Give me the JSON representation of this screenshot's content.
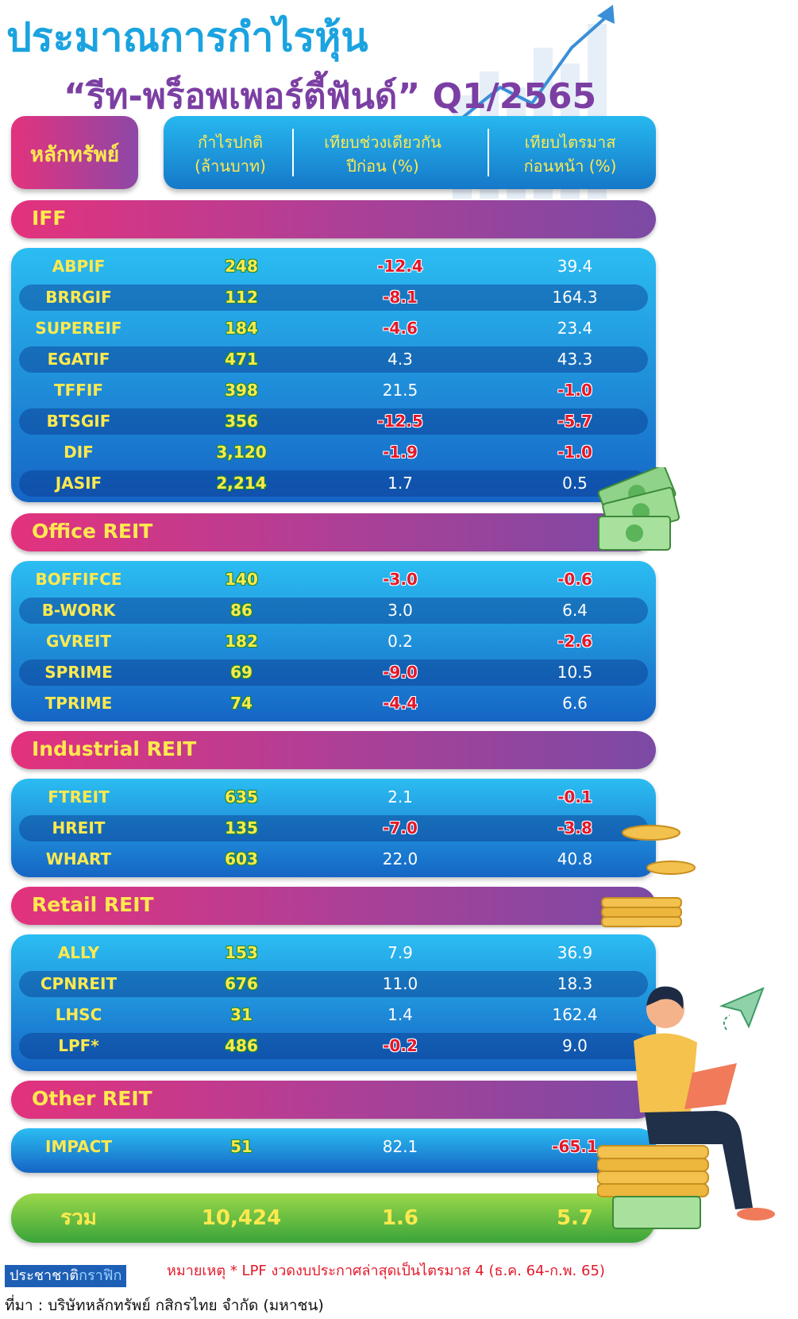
{
  "title": {
    "line1": "ประมาณการกำไรหุ้น",
    "line2": "“รีท-พร็อพเพอร์ตี้ฟันด์” Q1/2565"
  },
  "header": {
    "security": "หลักทรัพย์",
    "profit_l1": "กำไรปกติ",
    "profit_l2": "(ล้านบาท)",
    "yoy_l1": "เทียบช่วงเดียวกัน",
    "yoy_l2": "ปีก่อน (%)",
    "qoq_l1": "เทียบไตรมาส",
    "qoq_l2": "ก่อนหน้า (%)"
  },
  "sections": [
    {
      "label": "IFF",
      "rows": [
        {
          "name": "ABPIF",
          "profit": "248",
          "yoy": "-12.4",
          "qoq": "39.4"
        },
        {
          "name": "BRRGIF",
          "profit": "112",
          "yoy": "-8.1",
          "qoq": "164.3"
        },
        {
          "name": "SUPEREIF",
          "profit": "184",
          "yoy": "-4.6",
          "qoq": "23.4"
        },
        {
          "name": "EGATIF",
          "profit": "471",
          "yoy": "4.3",
          "qoq": "43.3"
        },
        {
          "name": "TFFIF",
          "profit": "398",
          "yoy": "21.5",
          "qoq": "-1.0"
        },
        {
          "name": "BTSGIF",
          "profit": "356",
          "yoy": "-12.5",
          "qoq": "-5.7"
        },
        {
          "name": "DIF",
          "profit": "3,120",
          "yoy": "-1.9",
          "qoq": "-1.0"
        },
        {
          "name": "JASIF",
          "profit": "2,214",
          "yoy": "1.7",
          "qoq": "0.5"
        }
      ]
    },
    {
      "label": "Office REIT",
      "rows": [
        {
          "name": "BOFFIFCE",
          "profit": "140",
          "yoy": "-3.0",
          "qoq": "-0.6"
        },
        {
          "name": "B-WORK",
          "profit": "86",
          "yoy": "3.0",
          "qoq": "6.4"
        },
        {
          "name": "GVREIT",
          "profit": "182",
          "yoy": "0.2",
          "qoq": "-2.6"
        },
        {
          "name": "SPRIME",
          "profit": "69",
          "yoy": "-9.0",
          "qoq": "10.5"
        },
        {
          "name": "TPRIME",
          "profit": "74",
          "yoy": "-4.4",
          "qoq": "6.6"
        }
      ]
    },
    {
      "label": "Industrial REIT",
      "rows": [
        {
          "name": "FTREIT",
          "profit": "635",
          "yoy": "2.1",
          "qoq": "-0.1"
        },
        {
          "name": "HREIT",
          "profit": "135",
          "yoy": "-7.0",
          "qoq": "-3.8"
        },
        {
          "name": "WHART",
          "profit": "603",
          "yoy": "22.0",
          "qoq": "40.8"
        }
      ]
    },
    {
      "label": "Retail REIT",
      "rows": [
        {
          "name": "ALLY",
          "profit": "153",
          "yoy": "7.9",
          "qoq": "36.9"
        },
        {
          "name": "CPNREIT",
          "profit": "676",
          "yoy": "11.0",
          "qoq": "18.3"
        },
        {
          "name": "LHSC",
          "profit": "31",
          "yoy": "1.4",
          "qoq": "162.4"
        },
        {
          "name": "LPF*",
          "profit": "486",
          "yoy": "-0.2",
          "qoq": "9.0"
        }
      ]
    },
    {
      "label": "Other REIT",
      "rows": [
        {
          "name": "IMPACT",
          "profit": "51",
          "yoy": "82.1",
          "qoq": "-65.1"
        }
      ]
    }
  ],
  "total": {
    "label": "รวม",
    "profit": "10,424",
    "yoy": "1.6",
    "qoq": "5.7"
  },
  "footnote": "หมายเหตุ * LPF งวดงบประกาศล่าสุดเป็นไตรมาส 4 (ธ.ค. 64-ก.พ. 65)",
  "brand": {
    "part1": "ประชาชาติ",
    "part2": "กราฟิก"
  },
  "source": "ที่มา : บริษัทหลักทรัพย์ กสิกรไทย จำกัด (มหาชน)",
  "colors": {
    "title_blue": "#1aa3e0",
    "title_purple": "#7b3fa3",
    "label_yellow": "#ffe94f",
    "negative_red": "#e3192b",
    "panel_blue": "#1a8fd8",
    "section_pink": "#e3327d",
    "total_green": "#5bb83f"
  },
  "decorations": [
    "rising-arrow-chart",
    "banknotes",
    "coin-stack",
    "person-with-laptop",
    "paper-plane"
  ]
}
